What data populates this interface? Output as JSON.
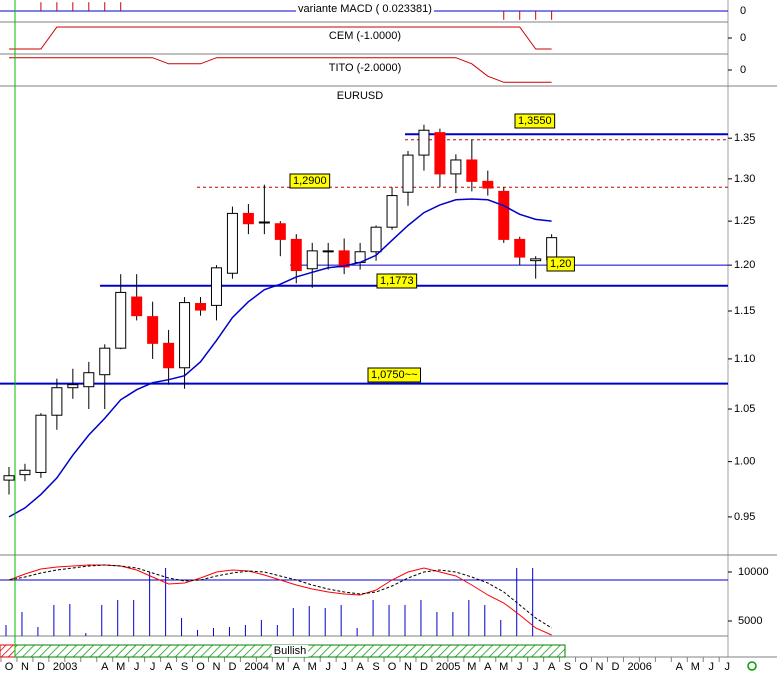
{
  "chart_data": {
    "type": "candlestick",
    "title": "EURUSD",
    "categories": [
      "O",
      "N",
      "D",
      "2003",
      null,
      null,
      "A",
      "M",
      "J",
      "J",
      "A",
      "S",
      "O",
      "N",
      "D",
      "2004",
      null,
      "M",
      "A",
      "M",
      "J",
      "J",
      "A",
      "S",
      "O",
      "N",
      "D",
      "2005",
      null,
      "M",
      "A",
      "M",
      "J",
      "J",
      "A",
      "S",
      "O",
      "N",
      "D",
      "2006",
      null,
      null,
      "A",
      "M",
      "J",
      "J"
    ],
    "log": true,
    "ylim": [
      0.917,
      1.417
    ],
    "yticks": [
      0.95,
      {
        "value": 1,
        "label": "1.00"
      },
      1.05,
      {
        "value": 1.1,
        "label": "1.10"
      },
      1.15,
      {
        "value": 1.2,
        "label": "1.20"
      },
      1.25,
      {
        "value": 1.3,
        "label": "1.30"
      },
      1.35
    ],
    "up_color": "#ffffff",
    "down_color": "#ff0000",
    "open": [
      0.983,
      0.988,
      0.99,
      1.044,
      1.071,
      1.072,
      1.084,
      1.111,
      1.165,
      1.144,
      1.116,
      1.091,
      1.158,
      1.156,
      1.191,
      1.259,
      1.248,
      1.247,
      1.229,
      1.196,
      1.215,
      1.216,
      1.203,
      1.215,
      1.243,
      1.284,
      1.329,
      1.357,
      1.306,
      1.323,
      1.297,
      1.285,
      1.229,
      1.205,
      1.206,
      null,
      null,
      null,
      null,
      null,
      null,
      null,
      null,
      null,
      null,
      null
    ],
    "high": [
      0.995,
      0.998,
      1.046,
      1.08,
      1.09,
      1.097,
      1.115,
      1.19,
      1.19,
      1.16,
      1.13,
      1.165,
      1.165,
      1.2,
      1.267,
      1.27,
      1.293,
      1.25,
      1.235,
      1.225,
      1.225,
      1.23,
      1.225,
      1.245,
      1.29,
      1.334,
      1.367,
      1.362,
      1.33,
      1.348,
      1.31,
      1.29,
      1.232,
      1.21,
      1.235,
      null,
      null,
      null,
      null,
      null,
      null,
      null,
      null,
      null,
      null,
      null
    ],
    "low": [
      0.97,
      0.982,
      0.985,
      1.03,
      1.06,
      1.05,
      1.05,
      1.11,
      1.14,
      1.1,
      1.074,
      1.07,
      1.145,
      1.14,
      1.185,
      1.235,
      1.235,
      1.21,
      1.18,
      1.175,
      1.195,
      1.19,
      1.195,
      1.205,
      1.24,
      1.268,
      1.31,
      1.29,
      1.283,
      1.285,
      1.28,
      1.225,
      1.2,
      1.185,
      1.203,
      null,
      null,
      null,
      null,
      null,
      null,
      null,
      null,
      null,
      null,
      null
    ],
    "close": [
      0.987,
      0.992,
      1.044,
      1.071,
      1.074,
      1.086,
      1.111,
      1.17,
      1.145,
      1.116,
      1.091,
      1.159,
      1.151,
      1.197,
      1.259,
      1.247,
      1.249,
      1.229,
      1.194,
      1.216,
      1.216,
      1.198,
      1.215,
      1.243,
      1.28,
      1.329,
      1.36,
      1.306,
      1.323,
      1.297,
      1.289,
      1.229,
      1.209,
      1.207,
      1.231,
      null,
      null,
      null,
      null,
      null,
      null,
      null,
      null,
      null,
      null,
      null
    ],
    "moving_average": {
      "color": "#0000cc",
      "values": [
        0.95,
        0.958,
        0.97,
        0.985,
        1.006,
        1.025,
        1.041,
        1.059,
        1.069,
        1.076,
        1.079,
        1.083,
        1.097,
        1.119,
        1.143,
        1.16,
        1.173,
        1.179,
        1.187,
        1.192,
        1.197,
        1.199,
        1.203,
        1.211,
        1.228,
        1.245,
        1.26,
        1.269,
        1.275,
        1.276,
        1.275,
        1.268,
        1.258,
        1.252,
        1.25,
        null,
        null,
        null,
        null,
        null,
        null,
        null,
        null,
        null,
        null,
        null
      ]
    },
    "levels": [
      {
        "value": 1.355,
        "label": "1,3550",
        "color": "#0000cc",
        "style": "thick"
      },
      {
        "value": 1.29,
        "label": "1,2900",
        "color": "#cc0000",
        "style": "dashed"
      },
      {
        "value": 1.348,
        "color": "#cc0000",
        "style": "dashed"
      },
      {
        "value": 1.2,
        "label": "1,20",
        "color": "#0000cc",
        "style": "thin"
      },
      {
        "value": 1.1773,
        "label": "1,1773",
        "color": "#0000cc",
        "style": "thick"
      },
      {
        "value": 1.075,
        "label": "1,0750~~",
        "color": "#0000cc",
        "style": "thick"
      }
    ],
    "indicators": [
      {
        "label": "variante MACD ( 0.023381)",
        "type": "histogram",
        "color": "#cc0000",
        "zero_line_color": "#0000cc",
        "ylim": [
          -0.05,
          0.05
        ],
        "yticks": [
          0
        ],
        "values": [
          null,
          null,
          0.04,
          0.04,
          0.04,
          0.04,
          0.04,
          0.04,
          null,
          null,
          null,
          null,
          null,
          null,
          null,
          null,
          null,
          null,
          null,
          null,
          null,
          null,
          null,
          null,
          null,
          null,
          null,
          null,
          null,
          null,
          null,
          -0.04,
          -0.04,
          -0.04,
          -0.04,
          null,
          null,
          null,
          null,
          null,
          null,
          null,
          null,
          null,
          null,
          null
        ]
      },
      {
        "label": "CEM (-1.0000)",
        "type": "step",
        "color": "#cc0000",
        "ylim": [
          -1.45,
          1.45
        ],
        "yticks": [
          0
        ],
        "values": [
          -1,
          -1,
          -1,
          1,
          1,
          1,
          1,
          1,
          1,
          1,
          1,
          1,
          1,
          1,
          1,
          1,
          1,
          1,
          1,
          1,
          1,
          1,
          1,
          1,
          1,
          1,
          1,
          1,
          1,
          1,
          1,
          1,
          1,
          -1,
          -1,
          null,
          null,
          null,
          null,
          null,
          null,
          null,
          null,
          null,
          null,
          null
        ]
      },
      {
        "label": "TITO (-2.0000)",
        "type": "step",
        "color": "#cc0000",
        "ylim": [
          -2.6,
          2.6
        ],
        "yticks": [
          0
        ],
        "values": [
          2,
          2,
          2,
          2,
          2,
          2,
          2,
          2,
          2,
          2,
          1,
          1,
          1,
          2,
          2,
          2,
          2,
          2,
          2,
          2,
          2,
          2,
          2,
          2,
          2,
          2,
          2,
          2,
          2,
          1,
          -1,
          -2,
          -2,
          -2,
          -2,
          null,
          null,
          null,
          null,
          null,
          null,
          null,
          null,
          null,
          null,
          null
        ]
      }
    ],
    "lower_panel": {
      "ylim": [
        3469,
        11735
      ],
      "yticks": [
        5000,
        10000
      ],
      "reference": 9184,
      "reference_color": "#0000cc",
      "bars": {
        "color": "#0000cc",
        "values": [
          4592,
          5918,
          4388,
          6633,
          6735,
          3776,
          6633,
          7143,
          7143,
          10000,
          10408,
          5306,
          4082,
          4286,
          4388,
          4592,
          5102,
          4592,
          6327,
          6531,
          6327,
          6633,
          4286,
          7143,
          6633,
          6633,
          7143,
          5918,
          5918,
          7143,
          6633,
          5102,
          10408,
          10408,
          null,
          null,
          null,
          null,
          null,
          null,
          null,
          null,
          null,
          null,
          null,
          null
        ]
      },
      "series": [
        {
          "color": "#ff0000",
          "dashed": false,
          "values": [
            9184,
            9796,
            10306,
            10510,
            10612,
            10714,
            10714,
            10612,
            10204,
            9490,
            8776,
            8878,
            9388,
            10000,
            10204,
            10102,
            9694,
            9184,
            8673,
            8265,
            7959,
            7755,
            7653,
            8163,
            9184,
            10000,
            10408,
            10000,
            9592,
            8673,
            7653,
            6837,
            5612,
            4286,
            3571,
            null,
            null,
            null,
            null,
            null,
            null,
            null,
            null,
            null,
            null,
            null
          ]
        },
        {
          "color": "#000000",
          "dashed": true,
          "values": [
            9184,
            9490,
            9898,
            10204,
            10408,
            10612,
            10714,
            10612,
            10408,
            9898,
            9388,
            9082,
            9184,
            9592,
            9898,
            10102,
            10000,
            9592,
            9184,
            8673,
            8265,
            7959,
            7755,
            7959,
            8571,
            9388,
            10000,
            10204,
            10000,
            9490,
            8878,
            7959,
            6633,
            5306,
            4286,
            null,
            null,
            null,
            null,
            null,
            null,
            null,
            null,
            null,
            null,
            null
          ]
        }
      ]
    },
    "signal": {
      "label": "Bullish",
      "color": "#008000"
    }
  }
}
